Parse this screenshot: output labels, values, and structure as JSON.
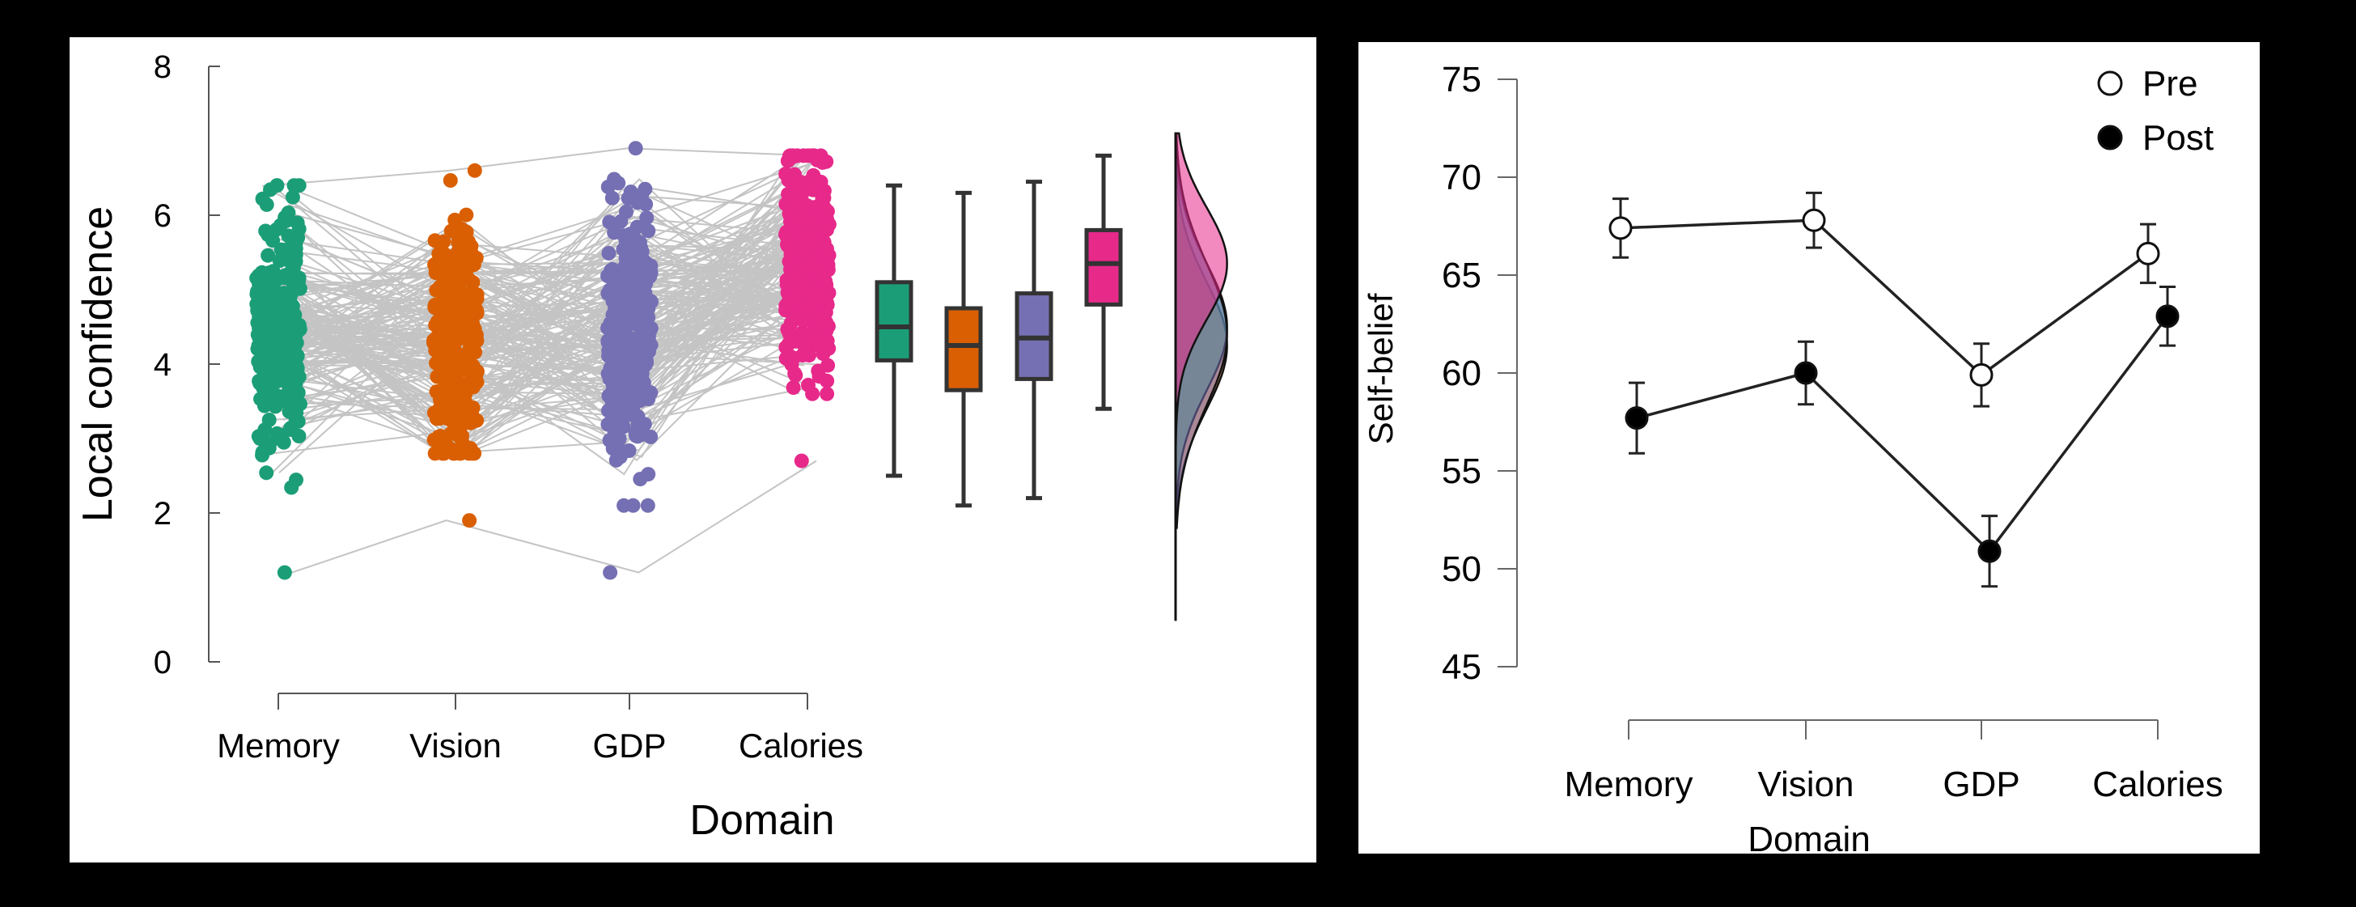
{
  "chart_data": [
    {
      "type": "raincloud",
      "panel": "left",
      "xlabel": "Domain",
      "ylabel": "Local confidence",
      "ylim": [
        0,
        8
      ],
      "yticks": [
        "0",
        "2",
        "4",
        "6",
        "8"
      ],
      "categories": [
        "Memory",
        "Vision",
        "GDP",
        "Calories"
      ],
      "colors": [
        "#1b9e77",
        "#d95f02",
        "#7570b3",
        "#e7298a"
      ],
      "points": {
        "n_per_domain": 300,
        "min": [
          1.2,
          1.9,
          1.2,
          2.7
        ],
        "max": [
          6.4,
          6.6,
          6.9,
          6.8
        ]
      },
      "boxplot": [
        {
          "name": "Memory",
          "whisker_low": 2.5,
          "q1": 4.05,
          "median": 4.5,
          "q3": 5.1,
          "whisker_high": 6.4
        },
        {
          "name": "Vision",
          "whisker_low": 2.1,
          "q1": 3.65,
          "median": 4.25,
          "q3": 4.75,
          "whisker_high": 6.3
        },
        {
          "name": "GDP",
          "whisker_low": 2.2,
          "q1": 3.8,
          "median": 4.35,
          "q3": 4.95,
          "whisker_high": 6.45
        },
        {
          "name": "Calories",
          "whisker_low": 3.4,
          "q1": 4.8,
          "median": 5.35,
          "q3": 5.8,
          "whisker_high": 6.8
        }
      ],
      "density": [
        {
          "name": "Memory",
          "mean": 4.5,
          "sd": 0.85
        },
        {
          "name": "Vision",
          "mean": 4.25,
          "sd": 0.85
        },
        {
          "name": "GDP",
          "mean": 4.4,
          "sd": 0.95
        },
        {
          "name": "Calories",
          "mean": 5.35,
          "sd": 0.75
        }
      ]
    },
    {
      "type": "line",
      "panel": "right",
      "xlabel": "Domain",
      "ylabel": "Self-belief",
      "ylim": [
        45,
        75
      ],
      "yticks": [
        "45",
        "50",
        "55",
        "60",
        "65",
        "70",
        "75"
      ],
      "categories": [
        "Memory",
        "Vision",
        "GDP",
        "Calories"
      ],
      "series": [
        {
          "name": "Pre",
          "values": [
            67.4,
            67.8,
            59.9,
            66.1
          ],
          "errors": [
            1.5,
            1.4,
            1.6,
            1.5
          ],
          "marker": "open"
        },
        {
          "name": "Post",
          "values": [
            57.7,
            60.0,
            50.9,
            62.9
          ],
          "errors": [
            1.8,
            1.6,
            1.8,
            1.5
          ],
          "marker": "filled"
        }
      ],
      "legend": "top-right"
    }
  ]
}
